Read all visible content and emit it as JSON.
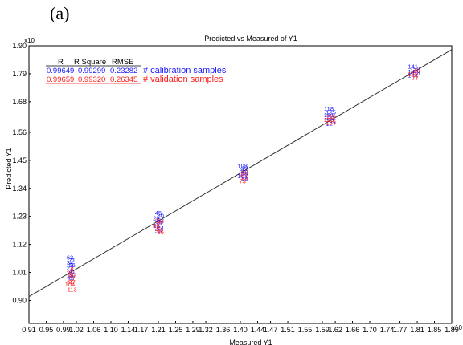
{
  "panel_label": "(a)",
  "chart_data": {
    "type": "scatter",
    "title": "Predicted vs Measured of Y1",
    "xlabel": "Measured Y1",
    "ylabel": "Predicted Y1",
    "x_exponent": "x10",
    "y_exponent": "x10",
    "xlim": [
      0.91,
      1.89
    ],
    "ylim": [
      0.81,
      1.9
    ],
    "x_ticks": [
      "0.91",
      "0.95",
      "0.99",
      "1.02",
      "1.06",
      "1.10",
      "1.14",
      "1.17",
      "1.21",
      "1.25",
      "1.29",
      "1.32",
      "1.36",
      "1.40",
      "1.44",
      "1.47",
      "1.51",
      "1.55",
      "1.59",
      "1.62",
      "1.66",
      "1.70",
      "1.74",
      "1.77",
      "1.81",
      "1.85",
      "1.89"
    ],
    "y_ticks": [
      "0.90",
      "1.01",
      "1.12",
      "1.23",
      "1.34",
      "1.45",
      "1.56",
      "1.68",
      "1.79",
      "1.90"
    ],
    "grid": false,
    "fit_line": {
      "x": [
        0.91,
        1.89
      ],
      "y": [
        0.915,
        1.885
      ]
    },
    "stats": {
      "headers": [
        "R",
        "R Square",
        "RMSE"
      ],
      "rows": [
        {
          "R": "0.99649",
          "R_square": "0.99299",
          "RMSE": "0.23282",
          "legend": "# calibration samples",
          "color": "#1a1aff"
        },
        {
          "R": "0.99659",
          "R_square": "0.99320",
          "RMSE": "0.26345",
          "legend": "# validation samples",
          "color": "#ff1a1a"
        }
      ]
    },
    "series": [
      {
        "name": "calibration samples",
        "color": "#1a1aff",
        "points": [
          {
            "x": 1.005,
            "y": 1.06,
            "label": "63"
          },
          {
            "x": 1.01,
            "y": 1.05,
            "label": "71"
          },
          {
            "x": 1.005,
            "y": 1.04,
            "label": "34"
          },
          {
            "x": 1.01,
            "y": 1.03,
            "label": "56"
          },
          {
            "x": 1.005,
            "y": 1.02,
            "label": "22"
          },
          {
            "x": 1.01,
            "y": 1.005,
            "label": "41"
          },
          {
            "x": 1.005,
            "y": 0.99,
            "label": "18"
          },
          {
            "x": 1.01,
            "y": 0.98,
            "label": "67"
          },
          {
            "x": 1.21,
            "y": 1.235,
            "label": "45"
          },
          {
            "x": 1.215,
            "y": 1.225,
            "label": "60"
          },
          {
            "x": 1.205,
            "y": 1.215,
            "label": "28"
          },
          {
            "x": 1.215,
            "y": 1.205,
            "label": "53"
          },
          {
            "x": 1.21,
            "y": 1.195,
            "label": "39"
          },
          {
            "x": 1.205,
            "y": 1.185,
            "label": "12"
          },
          {
            "x": 1.215,
            "y": 1.175,
            "label": "74"
          },
          {
            "x": 1.21,
            "y": 1.165,
            "label": "58"
          },
          {
            "x": 1.405,
            "y": 1.42,
            "label": "108"
          },
          {
            "x": 1.41,
            "y": 1.41,
            "label": "92"
          },
          {
            "x": 1.405,
            "y": 1.4,
            "label": "85"
          },
          {
            "x": 1.41,
            "y": 1.39,
            "label": "99"
          },
          {
            "x": 1.405,
            "y": 1.38,
            "label": "103"
          },
          {
            "x": 1.41,
            "y": 1.37,
            "label": "88"
          },
          {
            "x": 1.605,
            "y": 1.645,
            "label": "118"
          },
          {
            "x": 1.61,
            "y": 1.63,
            "label": "125"
          },
          {
            "x": 1.605,
            "y": 1.62,
            "label": "131"
          },
          {
            "x": 1.61,
            "y": 1.61,
            "label": "122"
          },
          {
            "x": 1.605,
            "y": 1.6,
            "label": "136"
          },
          {
            "x": 1.61,
            "y": 1.585,
            "label": "127"
          },
          {
            "x": 1.8,
            "y": 1.81,
            "label": "141"
          },
          {
            "x": 1.805,
            "y": 1.8,
            "label": "152"
          },
          {
            "x": 1.8,
            "y": 1.79,
            "label": "147"
          },
          {
            "x": 1.805,
            "y": 1.785,
            "label": "158"
          },
          {
            "x": 1.8,
            "y": 1.775,
            "label": "144"
          }
        ]
      },
      {
        "name": "validation samples",
        "color": "#ff1a1a",
        "points": [
          {
            "x": 1.01,
            "y": 1.015,
            "label": "8"
          },
          {
            "x": 1.005,
            "y": 1.0,
            "label": "26"
          },
          {
            "x": 1.01,
            "y": 0.99,
            "label": "49"
          },
          {
            "x": 1.005,
            "y": 0.975,
            "label": "13"
          },
          {
            "x": 1.01,
            "y": 0.965,
            "label": "37"
          },
          {
            "x": 1.005,
            "y": 0.955,
            "label": "104"
          },
          {
            "x": 1.01,
            "y": 0.935,
            "label": "113"
          },
          {
            "x": 1.21,
            "y": 1.205,
            "label": "31"
          },
          {
            "x": 1.215,
            "y": 1.195,
            "label": "57"
          },
          {
            "x": 1.205,
            "y": 1.185,
            "label": "66"
          },
          {
            "x": 1.21,
            "y": 1.17,
            "label": "42"
          },
          {
            "x": 1.215,
            "y": 1.16,
            "label": "96"
          },
          {
            "x": 1.41,
            "y": 1.395,
            "label": "82"
          },
          {
            "x": 1.405,
            "y": 1.385,
            "label": "77"
          },
          {
            "x": 1.41,
            "y": 1.375,
            "label": "91"
          },
          {
            "x": 1.405,
            "y": 1.36,
            "label": "73"
          },
          {
            "x": 1.61,
            "y": 1.615,
            "label": "116"
          },
          {
            "x": 1.605,
            "y": 1.6,
            "label": "129"
          },
          {
            "x": 1.61,
            "y": 1.59,
            "label": "133"
          },
          {
            "x": 1.805,
            "y": 1.795,
            "label": "149"
          },
          {
            "x": 1.8,
            "y": 1.78,
            "label": "155"
          },
          {
            "x": 1.805,
            "y": 1.765,
            "label": "77"
          }
        ]
      }
    ]
  }
}
